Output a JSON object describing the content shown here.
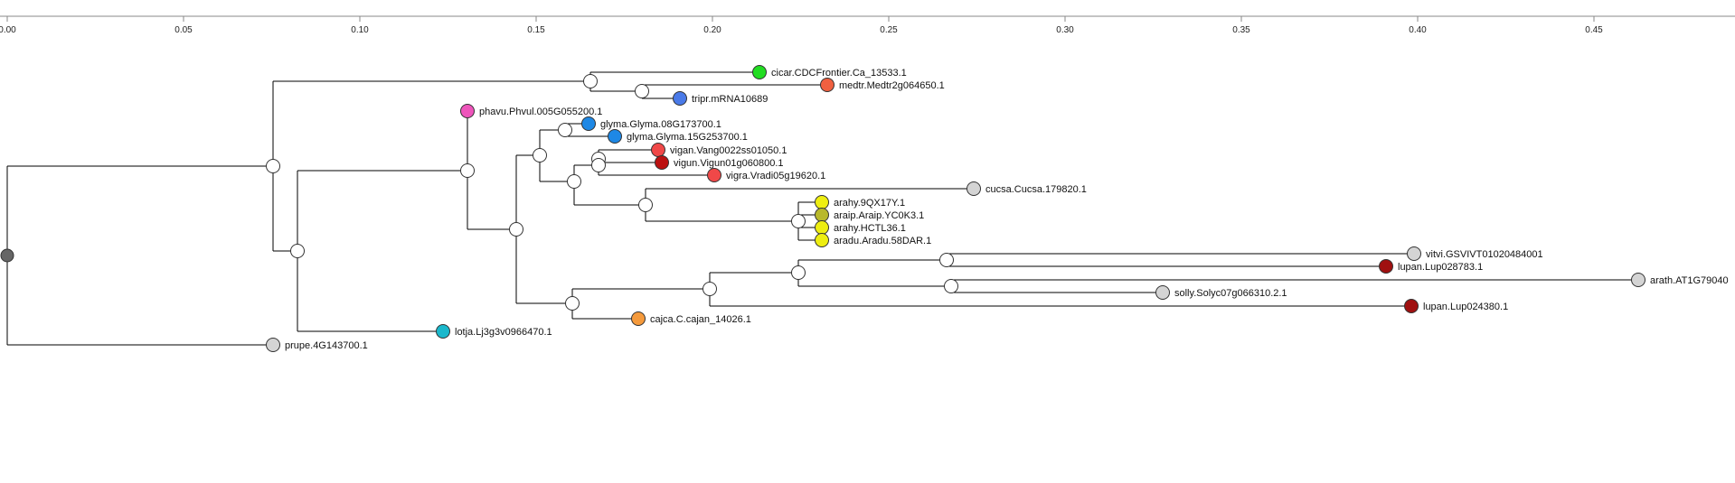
{
  "scale_axis": {
    "ticks": [
      "0.00",
      "0.05",
      "0.10",
      "0.15",
      "0.20",
      "0.25",
      "0.30",
      "0.35",
      "0.40",
      "0.45"
    ]
  },
  "tree": {
    "leaves": [
      {
        "id": "cicar",
        "label": "cicar.CDCFrontier.Ca_13533.1",
        "color": "#22dd22"
      },
      {
        "id": "medtr",
        "label": "medtr.Medtr2g064650.1",
        "color": "#f06040"
      },
      {
        "id": "tripr",
        "label": "tripr.mRNA10689",
        "color": "#4a7ae8"
      },
      {
        "id": "phavu",
        "label": "phavu.Phvul.005G055200.1",
        "color": "#ee55bb"
      },
      {
        "id": "glyma1",
        "label": "glyma.Glyma.08G173700.1",
        "color": "#1e88e5"
      },
      {
        "id": "glyma2",
        "label": "glyma.Glyma.15G253700.1",
        "color": "#1e88e5"
      },
      {
        "id": "vigan",
        "label": "vigan.Vang0022ss01050.1",
        "color": "#f04848"
      },
      {
        "id": "vigun",
        "label": "vigun.Vigun01g060800.1",
        "color": "#bb1111"
      },
      {
        "id": "vigra",
        "label": "vigra.Vradi05g19620.1",
        "color": "#f04848"
      },
      {
        "id": "cucsa",
        "label": "cucsa.Cucsa.179820.1",
        "color": "#d4d4d4"
      },
      {
        "id": "arahy1",
        "label": "arahy.9QX17Y.1",
        "color": "#eeee11"
      },
      {
        "id": "araip",
        "label": "araip.Araip.YC0K3.1",
        "color": "#b8b82a"
      },
      {
        "id": "arahy2",
        "label": "arahy.HCTL36.1",
        "color": "#eeee11"
      },
      {
        "id": "aradu",
        "label": "aradu.Aradu.58DAR.1",
        "color": "#eeee11"
      },
      {
        "id": "vitvi",
        "label": "vitvi.GSVIVT01020484001",
        "color": "#d4d4d4"
      },
      {
        "id": "lupan1",
        "label": "lupan.Lup028783.1",
        "color": "#a01010"
      },
      {
        "id": "arath",
        "label": "arath.AT1G79040",
        "color": "#d4d4d4"
      },
      {
        "id": "solly",
        "label": "solly.Solyc07g066310.2.1",
        "color": "#d4d4d4"
      },
      {
        "id": "lupan2",
        "label": "lupan.Lup024380.1",
        "color": "#a01010"
      },
      {
        "id": "cajca",
        "label": "cajca.C.cajan_14026.1",
        "color": "#f59a3c"
      },
      {
        "id": "lotja",
        "label": "lotja.Lj3g3v0966470.1",
        "color": "#1ab8cc"
      },
      {
        "id": "prupe",
        "label": "prupe.4G143700.1",
        "color": "#d4d4d4"
      }
    ],
    "root_color": "#666666",
    "internal_color": "#ffffff"
  }
}
